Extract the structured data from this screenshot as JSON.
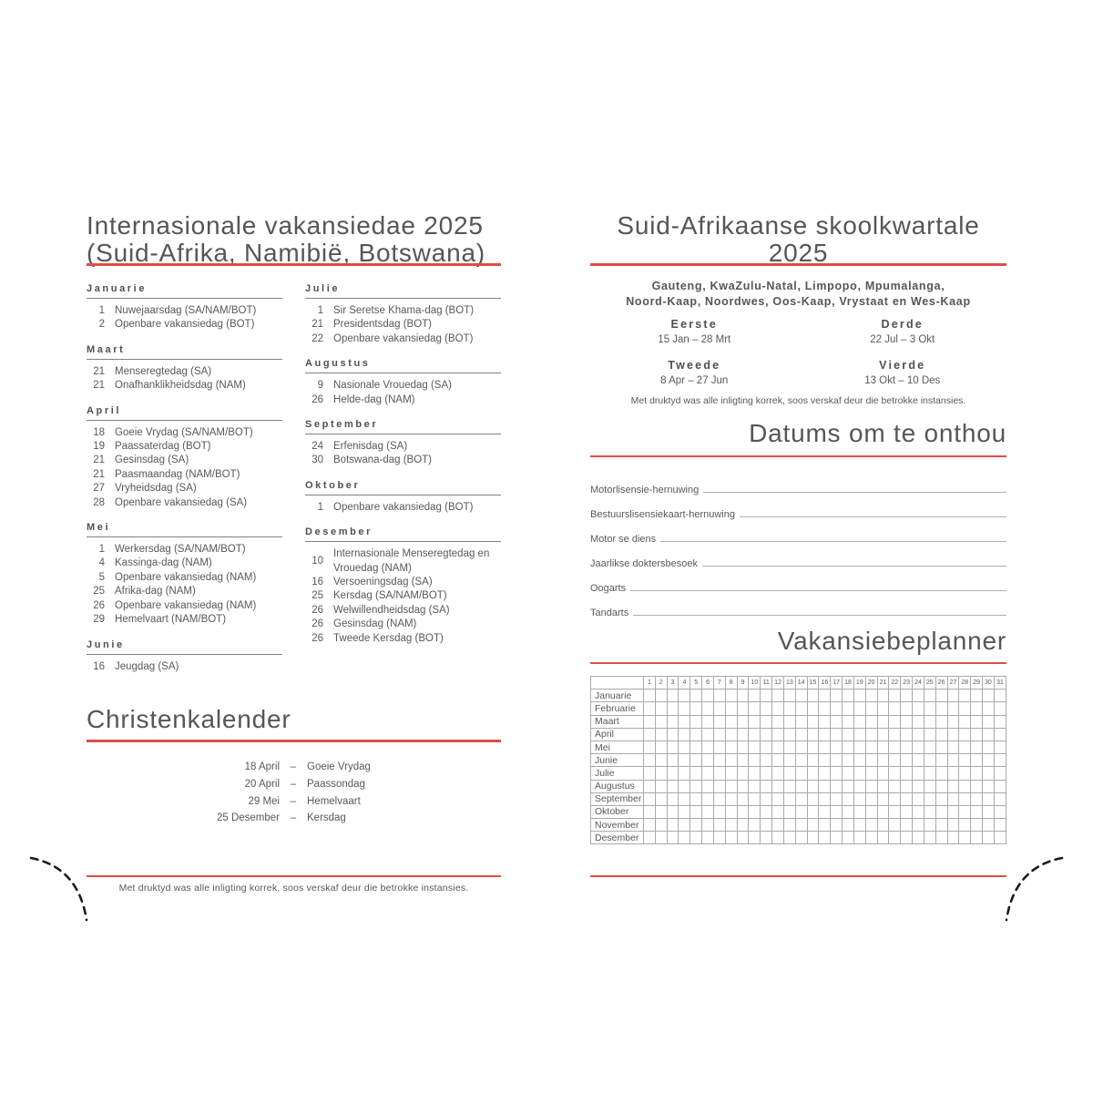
{
  "colors": {
    "accent_red": "#dc4f47",
    "text_gray": "#58595b"
  },
  "left_page": {
    "title_line1": "Internasionale vakansiedae 2025",
    "title_line2": "(Suid-Afrika, Namibië, Botswana)",
    "columns": [
      {
        "months": [
          {
            "name": "Januarie",
            "entries": [
              [
                "1",
                "Nuwejaarsdag (SA/NAM/BOT)"
              ],
              [
                "2",
                "Openbare vakansiedag (BOT)"
              ]
            ]
          },
          {
            "name": "Maart",
            "entries": [
              [
                "21",
                "Menseregtedag (SA)"
              ],
              [
                "21",
                "Onafhanklikheidsdag (NAM)"
              ]
            ]
          },
          {
            "name": "April",
            "entries": [
              [
                "18",
                "Goeie Vrydag (SA/NAM/BOT)"
              ],
              [
                "19",
                "Paassaterdag (BOT)"
              ],
              [
                "21",
                "Gesinsdag (SA)"
              ],
              [
                "21",
                "Paasmaandag (NAM/BOT)"
              ],
              [
                "27",
                "Vryheidsdag (SA)"
              ],
              [
                "28",
                "Openbare vakansiedag (SA)"
              ]
            ]
          },
          {
            "name": "Mei",
            "entries": [
              [
                "1",
                "Werkersdag (SA/NAM/BOT)"
              ],
              [
                "4",
                "Kassinga-dag (NAM)"
              ],
              [
                "5",
                "Openbare vakansiedag (NAM)"
              ],
              [
                "25",
                "Afrika-dag (NAM)"
              ],
              [
                "26",
                "Openbare vakansiedag (NAM)"
              ],
              [
                "29",
                "Hemelvaart (NAM/BOT)"
              ]
            ]
          },
          {
            "name": "Junie",
            "entries": [
              [
                "16",
                "Jeugdag (SA)"
              ]
            ]
          }
        ]
      },
      {
        "months": [
          {
            "name": "Julie",
            "entries": [
              [
                "1",
                "Sir Seretse Khama-dag (BOT)"
              ],
              [
                "21",
                "Presidentsdag (BOT)"
              ],
              [
                "22",
                "Openbare vakansiedag (BOT)"
              ]
            ]
          },
          {
            "name": "Augustus",
            "entries": [
              [
                "9",
                "Nasionale Vrouedag (SA)"
              ],
              [
                "26",
                "Helde-dag (NAM)"
              ]
            ]
          },
          {
            "name": "September",
            "entries": [
              [
                "24",
                "Erfenisdag (SA)"
              ],
              [
                "30",
                "Botswana-dag (BOT)"
              ]
            ]
          },
          {
            "name": "Oktober",
            "entries": [
              [
                "1",
                "Openbare vakansiedag (BOT)"
              ]
            ]
          },
          {
            "name": "Desember",
            "entries": [
              [
                "10",
                "Internasionale Menseregtedag en Vrouedag (NAM)"
              ],
              [
                "16",
                "Versoeningsdag (SA)"
              ],
              [
                "25",
                "Kersdag (SA/NAM/BOT)"
              ],
              [
                "26",
                "Welwillendheidsdag (SA)"
              ],
              [
                "26",
                "Gesinsdag (NAM)"
              ],
              [
                "26",
                "Tweede Kersdag (BOT)"
              ]
            ]
          }
        ]
      }
    ],
    "christen": {
      "title": "Christenkalender",
      "separator": "–",
      "entries": [
        {
          "date": "18 April",
          "name": "Goeie Vrydag"
        },
        {
          "date": "20 April",
          "name": "Paassondag"
        },
        {
          "date": "29 Mei",
          "name": "Hemelvaart"
        },
        {
          "date": "25 Desember",
          "name": "Kersdag"
        }
      ]
    },
    "footnote": "Met druktyd was alle inligting korrek, soos verskaf deur die betrokke instansies."
  },
  "right_page": {
    "title": "Suid-Afrikaanse skoolkwartale 2025",
    "provinces_line1": "Gauteng, KwaZulu-Natal, Limpopo, Mpumalanga,",
    "provinces_line2": "Noord-Kaap, Noordwes, Oos-Kaap, Vrystaat en Wes-Kaap",
    "terms": [
      {
        "name": "Eerste",
        "range": "15 Jan – 28 Mrt"
      },
      {
        "name": "Derde",
        "range": "22 Jul – 3 Okt"
      },
      {
        "name": "Tweede",
        "range": "8 Apr – 27 Jun"
      },
      {
        "name": "Vierde",
        "range": "13 Okt – 10 Des"
      }
    ],
    "note": "Met druktyd was alle inligting korrek, soos verskaf deur die betrokke instansies.",
    "remember": {
      "title": "Datums om te onthou",
      "fields": [
        "Motorlisensie-hernuwing",
        "Bestuurslisensiekaart-hernuwing",
        "Motor se diens",
        "Jaarlikse doktersbesoek",
        "Oogarts",
        "Tandarts"
      ]
    },
    "planner": {
      "title": "Vakansiebeplanner",
      "days": 31,
      "months": [
        "Januarie",
        "Februarie",
        "Maart",
        "April",
        "Mei",
        "Junie",
        "Julie",
        "Augustus",
        "September",
        "Oktober",
        "November",
        "Desember"
      ]
    }
  }
}
